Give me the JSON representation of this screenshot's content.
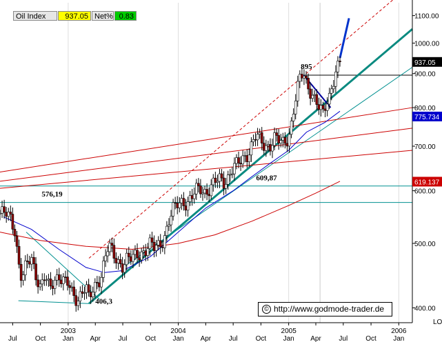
{
  "header": {
    "instrument": "Oil Index",
    "value": "937.05",
    "net_label": "Net%",
    "net_value": "0.83"
  },
  "credit": {
    "symbol": "©",
    "text": "http://www.godmode-trader.de"
  },
  "scale_label": "LO",
  "chart_data": {
    "type": "candlestick",
    "y_scale": "log",
    "ylim": [
      380,
      1150
    ],
    "xlim": [
      "2002-05-20",
      "2006-02-15"
    ],
    "y_ticks": [
      400,
      500,
      600,
      700,
      800,
      900,
      1000,
      1100
    ],
    "y_tick_labels": [
      "400.00",
      "500.00",
      "600.00",
      "700.00",
      "800.00",
      "900.00",
      "1000.00",
      "1100.00"
    ],
    "x_month_ticks": [
      {
        "date": "2002-07-01",
        "label": "Jul"
      },
      {
        "date": "2002-10-01",
        "label": "Oct"
      },
      {
        "date": "2003-01-01",
        "label": "Jan"
      },
      {
        "date": "2003-04-01",
        "label": "Apr"
      },
      {
        "date": "2003-07-01",
        "label": "Jul"
      },
      {
        "date": "2003-10-01",
        "label": "Oct"
      },
      {
        "date": "2004-01-01",
        "label": "Jan"
      },
      {
        "date": "2004-04-01",
        "label": "Apr"
      },
      {
        "date": "2004-07-01",
        "label": "Jul"
      },
      {
        "date": "2004-10-01",
        "label": "Oct"
      },
      {
        "date": "2005-01-01",
        "label": "Jan"
      },
      {
        "date": "2005-04-01",
        "label": "Apr"
      },
      {
        "date": "2005-07-01",
        "label": "Jul"
      },
      {
        "date": "2005-10-01",
        "label": "Oct"
      },
      {
        "date": "2006-01-01",
        "label": "Jan"
      }
    ],
    "x_year_labels": [
      {
        "date": "2003-01-01",
        "label": "2003"
      },
      {
        "date": "2004-01-01",
        "label": "2004"
      },
      {
        "date": "2005-01-01",
        "label": "2005"
      },
      {
        "date": "2006-01-01",
        "label": "2006"
      }
    ],
    "price_path": [
      [
        "2002-05-20",
        555
      ],
      [
        "2002-06-10",
        552
      ],
      [
        "2002-06-25",
        545
      ],
      [
        "2002-07-08",
        525
      ],
      [
        "2002-07-20",
        470
      ],
      [
        "2002-08-01",
        440
      ],
      [
        "2002-08-15",
        462
      ],
      [
        "2002-09-01",
        475
      ],
      [
        "2002-09-15",
        452
      ],
      [
        "2002-10-01",
        430
      ],
      [
        "2002-10-15",
        445
      ],
      [
        "2002-11-01",
        425
      ],
      [
        "2002-11-15",
        440
      ],
      [
        "2002-12-01",
        450
      ],
      [
        "2002-12-15",
        440
      ],
      [
        "2003-01-01",
        433
      ],
      [
        "2003-01-15",
        418
      ],
      [
        "2003-02-01",
        412
      ],
      [
        "2003-02-15",
        425
      ],
      [
        "2003-03-01",
        430
      ],
      [
        "2003-03-11",
        410
      ],
      [
        "2003-03-25",
        425
      ],
      [
        "2003-04-08",
        438
      ],
      [
        "2003-04-20",
        448
      ],
      [
        "2003-05-05",
        480
      ],
      [
        "2003-05-15",
        495
      ],
      [
        "2003-06-01",
        478
      ],
      [
        "2003-06-15",
        470
      ],
      [
        "2003-07-01",
        465
      ],
      [
        "2003-07-15",
        475
      ],
      [
        "2003-08-01",
        472
      ],
      [
        "2003-08-15",
        480
      ],
      [
        "2003-09-01",
        485
      ],
      [
        "2003-09-15",
        490
      ],
      [
        "2003-10-01",
        498
      ],
      [
        "2003-10-15",
        490
      ],
      [
        "2003-11-01",
        500
      ],
      [
        "2003-11-15",
        510
      ],
      [
        "2003-12-01",
        540
      ],
      [
        "2003-12-15",
        560
      ],
      [
        "2004-01-01",
        575
      ],
      [
        "2004-01-15",
        580
      ],
      [
        "2004-02-01",
        575
      ],
      [
        "2004-02-15",
        585
      ],
      [
        "2004-03-01",
        600
      ],
      [
        "2004-03-15",
        605
      ],
      [
        "2004-04-01",
        598
      ],
      [
        "2004-04-15",
        605
      ],
      [
        "2004-05-01",
        615
      ],
      [
        "2004-05-15",
        625
      ],
      [
        "2004-06-01",
        620
      ],
      [
        "2004-06-15",
        630
      ],
      [
        "2004-07-01",
        650
      ],
      [
        "2004-07-15",
        655
      ],
      [
        "2004-08-01",
        670
      ],
      [
        "2004-08-15",
        680
      ],
      [
        "2004-09-01",
        705
      ],
      [
        "2004-09-15",
        725
      ],
      [
        "2004-10-01",
        710
      ],
      [
        "2004-10-15",
        700
      ],
      [
        "2004-11-01",
        705
      ],
      [
        "2004-11-15",
        720
      ],
      [
        "2004-12-01",
        710
      ],
      [
        "2004-12-15",
        705
      ],
      [
        "2005-01-01",
        725
      ],
      [
        "2005-01-10",
        760
      ],
      [
        "2005-01-20",
        810
      ],
      [
        "2005-02-01",
        860
      ],
      [
        "2005-02-10",
        890
      ],
      [
        "2005-02-20",
        895
      ],
      [
        "2005-03-01",
        870
      ],
      [
        "2005-03-15",
        850
      ],
      [
        "2005-04-01",
        820
      ],
      [
        "2005-04-15",
        790
      ],
      [
        "2005-04-25",
        780
      ],
      [
        "2005-05-05",
        810
      ],
      [
        "2005-05-15",
        830
      ],
      [
        "2005-05-25",
        870
      ],
      [
        "2005-06-05",
        905
      ],
      [
        "2005-06-20",
        935
      ]
    ],
    "moving_averages": [
      {
        "color": "#0000cc",
        "points": [
          [
            "2002-06-01",
            548
          ],
          [
            "2002-09-01",
            525
          ],
          [
            "2002-12-01",
            490
          ],
          [
            "2003-03-01",
            460
          ],
          [
            "2003-05-01",
            452
          ],
          [
            "2003-07-01",
            455
          ],
          [
            "2003-10-01",
            478
          ],
          [
            "2004-01-01",
            520
          ],
          [
            "2004-04-01",
            565
          ],
          [
            "2004-07-01",
            600
          ],
          [
            "2004-09-01",
            630
          ],
          [
            "2004-11-01",
            660
          ],
          [
            "2005-01-01",
            690
          ],
          [
            "2005-03-01",
            735
          ],
          [
            "2005-05-01",
            760
          ],
          [
            "2005-06-20",
            790
          ]
        ]
      },
      {
        "color": "#cc0000",
        "points": [
          [
            "2002-05-20",
            520
          ],
          [
            "2002-10-01",
            505
          ],
          [
            "2003-03-01",
            495
          ],
          [
            "2003-08-01",
            490
          ],
          [
            "2004-01-01",
            500
          ],
          [
            "2004-05-01",
            515
          ],
          [
            "2004-09-01",
            540
          ],
          [
            "2005-01-01",
            570
          ],
          [
            "2005-04-01",
            595
          ],
          [
            "2005-06-20",
            620
          ]
        ]
      }
    ],
    "trendlines": [
      {
        "kind": "main-uptrend",
        "color": "#0a8a80",
        "width": 3,
        "from": [
          "2003-03-11",
          406
        ],
        "to": [
          "2006-02-15",
          1050
        ]
      },
      {
        "kind": "parallel-channel",
        "color": "#cc0000",
        "dash": true,
        "width": 1,
        "from": [
          "2003-03-11",
          475
        ],
        "to": [
          "2006-02-15",
          1230
        ]
      },
      {
        "kind": "thin-uptrend",
        "color": "#009090",
        "width": 1,
        "from": [
          "2003-07-01",
          460
        ],
        "to": [
          "2006-02-15",
          920
        ]
      },
      {
        "kind": "long-resistance",
        "color": "#cc0000",
        "width": 1,
        "from": [
          "2002-05-20",
          640
        ],
        "to": [
          "2006-02-15",
          800
        ]
      },
      {
        "kind": "long-resistance",
        "color": "#cc0000",
        "width": 1,
        "from": [
          "2002-05-20",
          620
        ],
        "to": [
          "2006-02-15",
          745
        ]
      },
      {
        "kind": "long-resistance",
        "color": "#cc0000",
        "width": 1,
        "from": [
          "2002-05-20",
          605
        ],
        "to": [
          "2006-02-15",
          690
        ]
      },
      {
        "kind": "wedge-upper",
        "color": "#009090",
        "width": 1,
        "from": [
          "2002-08-15",
          520
        ],
        "to": [
          "2003-04-15",
          412
        ]
      },
      {
        "kind": "wedge-lower",
        "color": "#009090",
        "width": 1,
        "from": [
          "2002-07-20",
          410
        ],
        "to": [
          "2003-03-11",
          406
        ]
      },
      {
        "kind": "downtrend-2005",
        "color": "#000099",
        "width": 2,
        "from": [
          "2005-02-20",
          895
        ],
        "to": [
          "2005-05-20",
          800
        ]
      },
      {
        "kind": "projection",
        "color": "#0033cc",
        "width": 3,
        "from": [
          "2005-06-20",
          950
        ],
        "to": [
          "2005-07-20",
          1090
        ]
      }
    ],
    "horizontal_levels": [
      {
        "value": 895,
        "color": "#000000",
        "from": "2005-02-20"
      },
      {
        "value": 609.87,
        "color": "#009090",
        "from": "2002-05-20"
      },
      {
        "value": 576.19,
        "color": "#009090",
        "from": "2002-05-20"
      }
    ],
    "annotations": [
      {
        "text": "895",
        "x": "2005-02-10",
        "y": 915
      },
      {
        "text": "609,87",
        "x": "2004-09-15",
        "y": 622
      },
      {
        "text": "576,19",
        "x": "2002-10-05",
        "y": 588
      },
      {
        "text": "406,3",
        "x": "2003-04-01",
        "y": 406
      }
    ],
    "value_tags": [
      {
        "text": "937.05",
        "y": 937.05,
        "bg": "#000000",
        "fg": "#ffffff"
      },
      {
        "text": "775.734",
        "y": 775.734,
        "bg": "#0000cc",
        "fg": "#ffffff"
      },
      {
        "text": "619.137",
        "y": 619.137,
        "bg": "#cc0000",
        "fg": "#ffffff"
      }
    ],
    "cursor_line_date": "2005-04-15"
  }
}
